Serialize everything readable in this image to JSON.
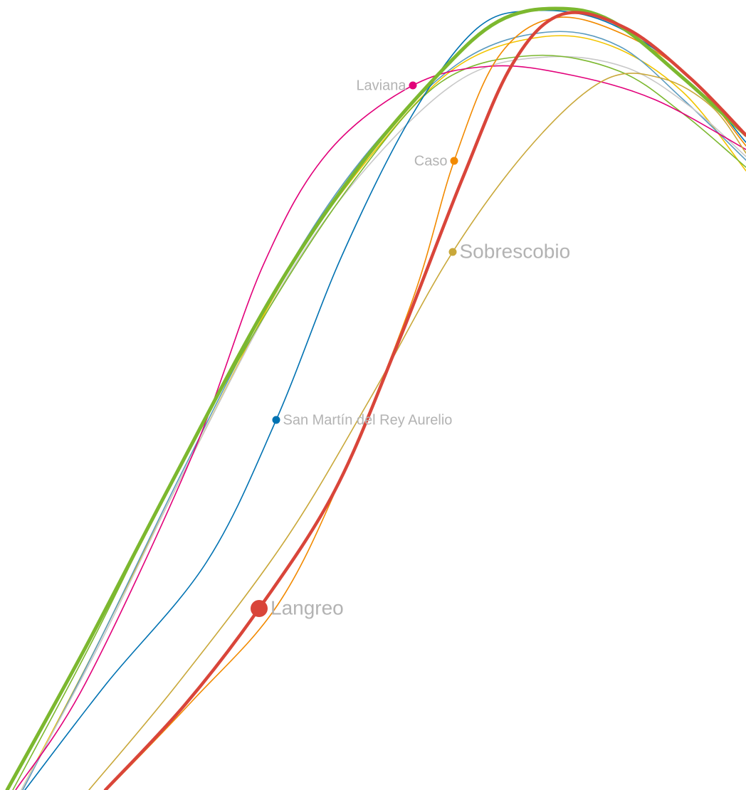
{
  "chart_data": {
    "type": "line",
    "title": "",
    "xlabel": "",
    "ylabel": "",
    "grid": false,
    "legend": "none",
    "series": [
      {
        "name": "Laviana",
        "color": "#e2007a",
        "emphasis": "normal",
        "label_side": "left",
        "label_at": 5,
        "points": [
          [
            22,
            1110
          ],
          [
            120,
            960
          ],
          [
            270,
            640
          ],
          [
            370,
            372
          ],
          [
            460,
            215
          ],
          [
            580,
            120
          ],
          [
            690,
            93
          ],
          [
            800,
            105
          ],
          [
            920,
            140
          ],
          [
            1048,
            210
          ]
        ]
      },
      {
        "name": "San Martín del Rey Aurelio",
        "color": "#0072b2",
        "emphasis": "normal",
        "label_side": "right",
        "label_at": 3,
        "points": [
          [
            35,
            1110
          ],
          [
            150,
            960
          ],
          [
            290,
            790
          ],
          [
            388,
            590
          ],
          [
            480,
            360
          ],
          [
            580,
            160
          ],
          [
            670,
            40
          ],
          [
            750,
            15
          ],
          [
            850,
            30
          ],
          [
            960,
            100
          ],
          [
            1048,
            200
          ]
        ]
      },
      {
        "name": "Caso",
        "color": "#f28a00",
        "emphasis": "normal",
        "label_side": "left",
        "label_at": 5,
        "points": [
          [
            150,
            1110
          ],
          [
            270,
            985
          ],
          [
            390,
            850
          ],
          [
            480,
            670
          ],
          [
            580,
            420
          ],
          [
            638,
            226
          ],
          [
            700,
            80
          ],
          [
            780,
            25
          ],
          [
            880,
            50
          ],
          [
            970,
            110
          ],
          [
            1048,
            205
          ]
        ]
      },
      {
        "name": "Sobrescobio",
        "color": "#c9a83a",
        "emphasis": "large",
        "label_side": "right",
        "label_at": 4,
        "points": [
          [
            125,
            1110
          ],
          [
            250,
            960
          ],
          [
            400,
            760
          ],
          [
            520,
            560
          ],
          [
            636,
            354
          ],
          [
            750,
            200
          ],
          [
            850,
            112
          ],
          [
            930,
            110
          ],
          [
            1000,
            150
          ],
          [
            1048,
            215
          ]
        ]
      },
      {
        "name": "Langreo",
        "color": "#d9453a",
        "emphasis": "highlight",
        "label_side": "right",
        "label_at": 2,
        "points": [
          [
            148,
            1110
          ],
          [
            260,
            990
          ],
          [
            364,
            855
          ],
          [
            470,
            690
          ],
          [
            560,
            480
          ],
          [
            650,
            250
          ],
          [
            720,
            90
          ],
          [
            790,
            20
          ],
          [
            880,
            40
          ],
          [
            970,
            110
          ],
          [
            1048,
            190
          ]
        ]
      },
      {
        "name": "",
        "color": "#f2c500",
        "emphasis": "normal",
        "label_side": "none",
        "label_at": 0,
        "points": [
          [
            30,
            1110
          ],
          [
            140,
            900
          ],
          [
            260,
            660
          ],
          [
            400,
            390
          ],
          [
            520,
            220
          ],
          [
            640,
            95
          ],
          [
            760,
            52
          ],
          [
            860,
            65
          ],
          [
            960,
            130
          ],
          [
            1048,
            240
          ]
        ]
      },
      {
        "name": "",
        "color": "#5b9bbf",
        "emphasis": "normal",
        "label_side": "none",
        "label_at": 0,
        "points": [
          [
            32,
            1110
          ],
          [
            140,
            900
          ],
          [
            260,
            655
          ],
          [
            400,
            385
          ],
          [
            520,
            210
          ],
          [
            650,
            85
          ],
          [
            770,
            45
          ],
          [
            870,
            65
          ],
          [
            960,
            140
          ],
          [
            1048,
            225
          ]
        ]
      },
      {
        "name": "",
        "color": "#c8c8c8",
        "emphasis": "normal",
        "label_side": "none",
        "label_at": 0,
        "points": [
          [
            30,
            1110
          ],
          [
            140,
            905
          ],
          [
            260,
            660
          ],
          [
            400,
            395
          ],
          [
            520,
            230
          ],
          [
            650,
            110
          ],
          [
            770,
            80
          ],
          [
            880,
            95
          ],
          [
            970,
            150
          ],
          [
            1048,
            220
          ]
        ]
      },
      {
        "name": "",
        "color": "#7cb82f",
        "emphasis": "normal",
        "label_side": "none",
        "label_at": 0,
        "points": [
          [
            18,
            1110
          ],
          [
            130,
            900
          ],
          [
            250,
            660
          ],
          [
            380,
            430
          ],
          [
            500,
            250
          ],
          [
            620,
            115
          ],
          [
            750,
            78
          ],
          [
            870,
            100
          ],
          [
            960,
            160
          ],
          [
            1048,
            235
          ]
        ]
      },
      {
        "name": "",
        "color": "#7cb82f",
        "emphasis": "bold",
        "label_side": "none",
        "label_at": 0,
        "points": [
          [
            10,
            1110
          ],
          [
            120,
            910
          ],
          [
            240,
            680
          ],
          [
            380,
            420
          ],
          [
            500,
            240
          ],
          [
            620,
            100
          ],
          [
            700,
            30
          ],
          [
            780,
            12
          ],
          [
            860,
            30
          ],
          [
            960,
            110
          ],
          [
            1048,
            190
          ]
        ]
      }
    ]
  }
}
